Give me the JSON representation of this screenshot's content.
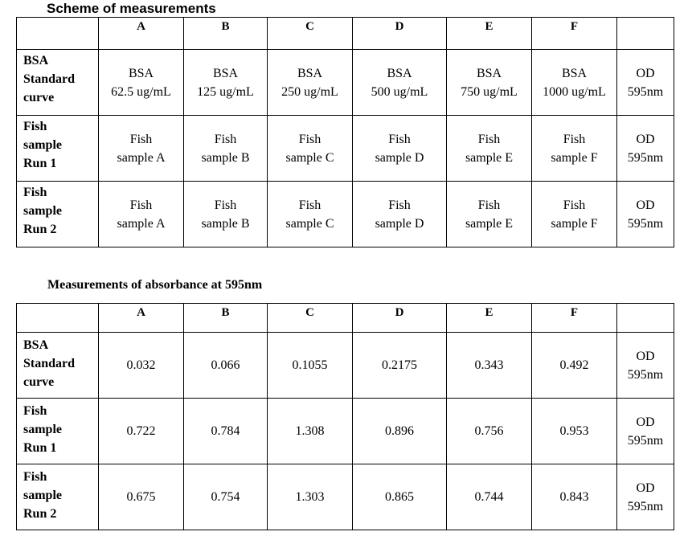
{
  "scheme": {
    "title": "Scheme of measurements",
    "headers": [
      "A",
      "B",
      "C",
      "D",
      "E",
      "F"
    ],
    "rows": [
      {
        "label": [
          "BSA",
          "Standard",
          "curve"
        ],
        "cells": [
          [
            "BSA",
            "62.5 ug/mL"
          ],
          [
            "BSA",
            "125 ug/mL"
          ],
          [
            "BSA",
            "250 ug/mL"
          ],
          [
            "BSA",
            "500 ug/mL"
          ],
          [
            "BSA",
            "750 ug/mL"
          ],
          [
            "BSA",
            "1000 ug/mL"
          ]
        ],
        "od": [
          "OD",
          "595nm"
        ]
      },
      {
        "label": [
          "Fish",
          "sample",
          "Run 1"
        ],
        "cells": [
          [
            "Fish",
            "sample A"
          ],
          [
            "Fish",
            "sample B"
          ],
          [
            "Fish",
            "sample C"
          ],
          [
            "Fish",
            "sample D"
          ],
          [
            "Fish",
            "sample E"
          ],
          [
            "Fish",
            "sample F"
          ]
        ],
        "od": [
          "OD",
          "595nm"
        ]
      },
      {
        "label": [
          "Fish",
          "sample",
          "Run 2"
        ],
        "cells": [
          [
            "Fish",
            "sample A"
          ],
          [
            "Fish",
            "sample B"
          ],
          [
            "Fish",
            "sample C"
          ],
          [
            "Fish",
            "sample D"
          ],
          [
            "Fish",
            "sample E"
          ],
          [
            "Fish",
            "sample F"
          ]
        ],
        "od": [
          "OD",
          "595nm"
        ]
      }
    ]
  },
  "absorbance": {
    "title": "Measurements of absorbance at 595nm",
    "headers": [
      "A",
      "B",
      "C",
      "D",
      "E",
      "F"
    ],
    "rows": [
      {
        "label": [
          "BSA",
          "Standard",
          "curve"
        ],
        "values": [
          "0.032",
          "0.066",
          "0.1055",
          "0.2175",
          "0.343",
          "0.492"
        ],
        "od": [
          "OD",
          "595nm"
        ]
      },
      {
        "label": [
          "Fish",
          "sample",
          "Run 1"
        ],
        "values": [
          "0.722",
          "0.784",
          "1.308",
          "0.896",
          "0.756",
          "0.953"
        ],
        "od": [
          "OD",
          "595nm"
        ]
      },
      {
        "label": [
          "Fish",
          "sample",
          "Run 2"
        ],
        "values": [
          "0.675",
          "0.754",
          "1.303",
          "0.865",
          "0.744",
          "0.843"
        ],
        "od": [
          "OD",
          "595nm"
        ]
      }
    ]
  }
}
